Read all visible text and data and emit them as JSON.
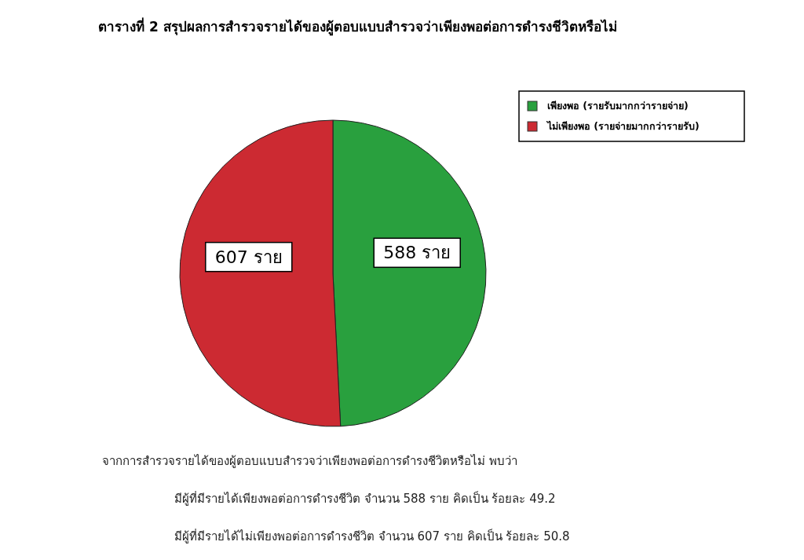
{
  "chart_data": {
    "type": "pie",
    "title": "ตารางที่ 2 สรุปผลการสำรวจรายได้ของผู้ตอบแบบสำรวจว่าเพียงพอต่อการดำรงชีวิตหรือไม่",
    "categories": [
      "เพียงพอ (รายรับมากกว่ารายจ่าย)",
      "ไม่เพียงพอ (รายจ่ายมากกว่ารายรับ)"
    ],
    "values": [
      588,
      607
    ],
    "colors": [
      "#29a03e",
      "#cc2a32"
    ],
    "value_labels": [
      "588 ราย",
      "607 ราย"
    ],
    "legend": "top right",
    "annotations": [
      "จากการสำรวจรายได้ของผู้ตอบแบบสำรวจว่าเพียงพอต่อการดำรงชีวิตหรือไม่ พบว่า",
      "มีผู้ที่มีรายได้เพียงพอต่อการดำรงชีวิต จำนวน 588 ราย คิดเป็น ร้อยละ 49.2",
      "มีผู้ที่มีรายได้ไม่เพียงพอต่อการดำรงชีวิต จำนวน 607 ราย คิดเป็น ร้อยละ 50.8"
    ]
  }
}
